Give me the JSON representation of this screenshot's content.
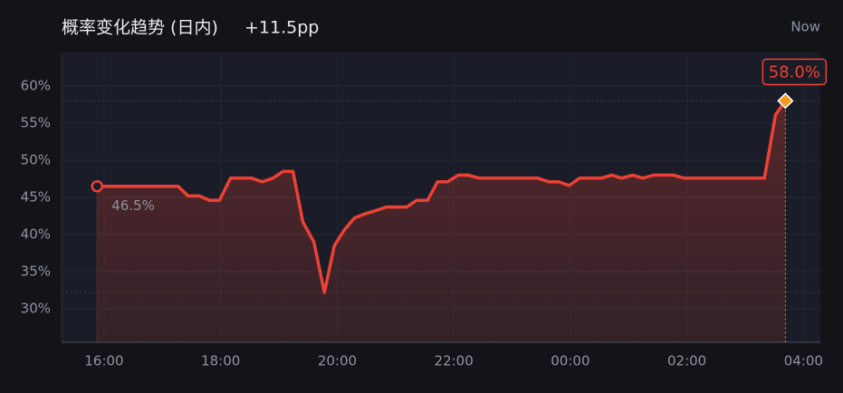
{
  "chart_data": {
    "type": "line",
    "title": "概率变化趋势 (日内)",
    "change": "+11.5pp",
    "now_label": "Now",
    "start_label": "46.5%",
    "end_label": "58.0%",
    "x": [
      15.88,
      17.27,
      17.44,
      17.63,
      17.81,
      17.98,
      18.17,
      18.53,
      18.71,
      18.9,
      19.07,
      19.24,
      19.41,
      19.6,
      19.78,
      19.95,
      20.12,
      20.29,
      20.48,
      20.65,
      20.84,
      21.19,
      21.36,
      21.55,
      21.72,
      21.89,
      22.08,
      22.25,
      22.43,
      23.44,
      23.63,
      23.8,
      23.98,
      24.16,
      24.53,
      24.71,
      24.88,
      25.07,
      25.24,
      25.43,
      25.77,
      25.95,
      27.33,
      27.52,
      27.69
    ],
    "series": [
      {
        "color": "#ec4134",
        "values": [
          46.5,
          46.5,
          45.2,
          45.2,
          44.6,
          44.6,
          47.6,
          47.6,
          47.1,
          47.6,
          48.5,
          48.5,
          41.7,
          39.0,
          32.2,
          38.5,
          40.6,
          42.2,
          42.8,
          43.2,
          43.7,
          43.7,
          44.6,
          44.6,
          47.1,
          47.1,
          48.0,
          48.0,
          47.6,
          47.6,
          47.1,
          47.1,
          46.6,
          47.6,
          47.6,
          48.0,
          47.6,
          48.0,
          47.6,
          48.0,
          48.0,
          47.6,
          47.6,
          56.1,
          58.0
        ]
      }
    ],
    "xlim": [
      15.27,
      28.29
    ],
    "ylim": [
      25.5,
      64.5
    ],
    "xticks": [
      {
        "value": 16,
        "label": "16:00"
      },
      {
        "value": 18,
        "label": "18:00"
      },
      {
        "value": 20,
        "label": "20:00"
      },
      {
        "value": 22,
        "label": "22:00"
      },
      {
        "value": 24,
        "label": "00:00"
      },
      {
        "value": 26,
        "label": "02:00"
      },
      {
        "value": 28,
        "label": "04:00"
      }
    ],
    "yticks": [
      {
        "value": 30,
        "label": "30%"
      },
      {
        "value": 35,
        "label": "35%"
      },
      {
        "value": 40,
        "label": "40%"
      },
      {
        "value": 45,
        "label": "45%"
      },
      {
        "value": 50,
        "label": "50%"
      },
      {
        "value": 55,
        "label": "55%"
      },
      {
        "value": 60,
        "label": "60%"
      }
    ],
    "grid": true,
    "marker_color": "#f29a1f"
  }
}
